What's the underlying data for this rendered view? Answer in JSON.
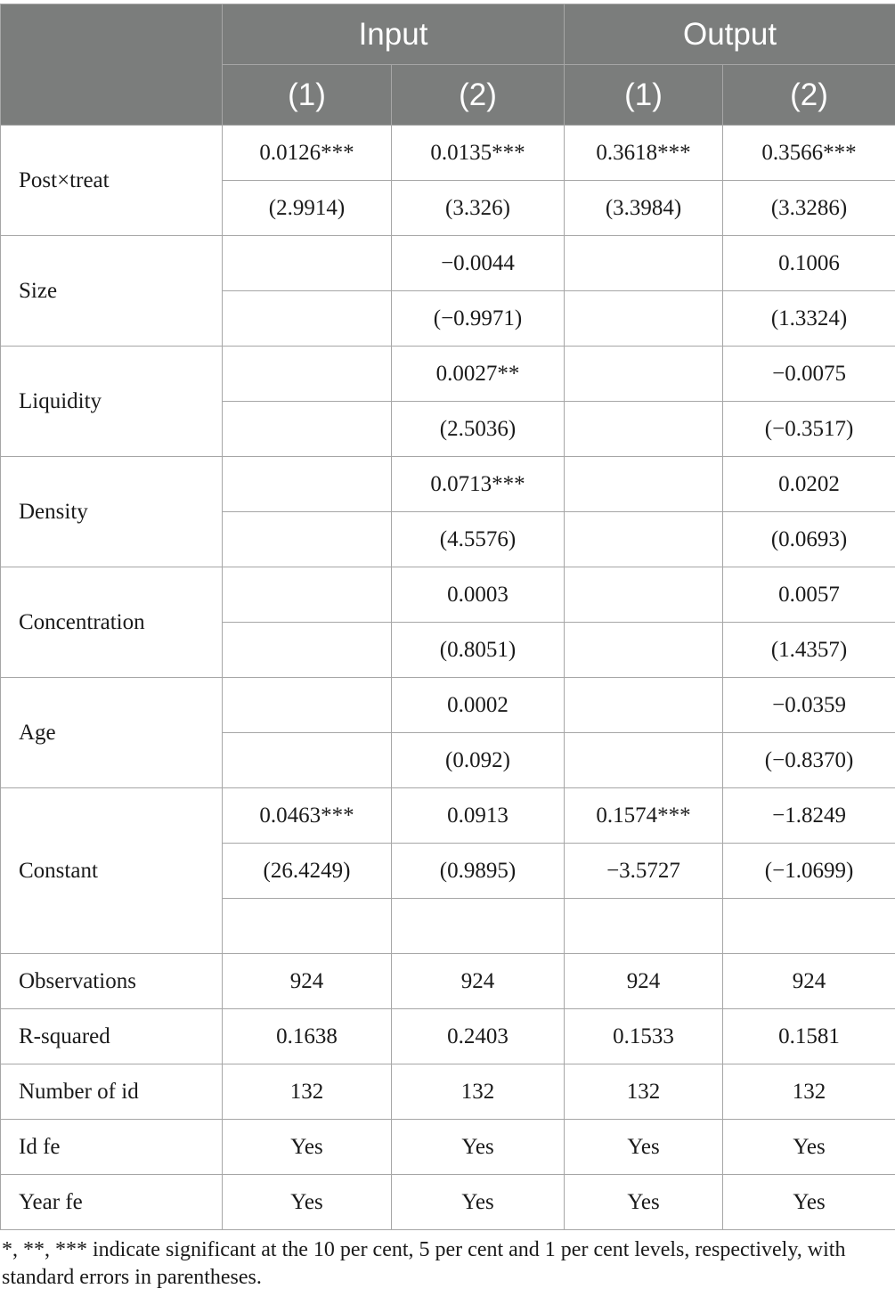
{
  "header": {
    "groups": [
      "Input",
      "Output"
    ],
    "models": [
      "(1)",
      "(2)",
      "(1)",
      "(2)"
    ]
  },
  "rows": [
    {
      "label": "Post×treat",
      "coef": [
        "0.0126***",
        "0.0135***",
        "0.3618***",
        "0.3566***"
      ],
      "stat": [
        "(2.9914)",
        "(3.326)",
        "(3.3984)",
        "(3.3286)"
      ]
    },
    {
      "label": "Size",
      "coef": [
        "",
        "−0.0044",
        "",
        "0.1006"
      ],
      "stat": [
        "",
        "(−0.9971)",
        "",
        "(1.3324)"
      ]
    },
    {
      "label": "Liquidity",
      "coef": [
        "",
        "0.0027**",
        "",
        "−0.0075"
      ],
      "stat": [
        "",
        "(2.5036)",
        "",
        "(−0.3517)"
      ]
    },
    {
      "label": "Density",
      "coef": [
        "",
        "0.0713***",
        "",
        "0.0202"
      ],
      "stat": [
        "",
        "(4.5576)",
        "",
        "(0.0693)"
      ]
    },
    {
      "label": "Concentration",
      "coef": [
        "",
        "0.0003",
        "",
        "0.0057"
      ],
      "stat": [
        "",
        "(0.8051)",
        "",
        "(1.4357)"
      ]
    },
    {
      "label": "Age",
      "coef": [
        "",
        "0.0002",
        "",
        "−0.0359"
      ],
      "stat": [
        "",
        "(0.092)",
        "",
        "(−0.8370)"
      ]
    }
  ],
  "constant": {
    "label": "Constant",
    "coef": [
      "0.0463***",
      "0.0913",
      "0.1574***",
      "−1.8249"
    ],
    "stat": [
      "(26.4249)",
      "(0.9895)",
      "−3.5727",
      "(−1.0699)"
    ]
  },
  "summary": [
    {
      "label": "Observations",
      "values": [
        "924",
        "924",
        "924",
        "924"
      ]
    },
    {
      "label": "R-squared",
      "values": [
        "0.1638",
        "0.2403",
        "0.1533",
        "0.1581"
      ]
    },
    {
      "label": "Number of id",
      "values": [
        "132",
        "132",
        "132",
        "132"
      ]
    },
    {
      "label": "Id fe",
      "values": [
        "Yes",
        "Yes",
        "Yes",
        "Yes"
      ]
    },
    {
      "label": "Year fe",
      "values": [
        "Yes",
        "Yes",
        "Yes",
        "Yes"
      ]
    }
  ],
  "note": "*, **, *** indicate significant at the 10 per cent, 5 per cent and 1 per cent levels, respectively, with standard errors in parentheses."
}
